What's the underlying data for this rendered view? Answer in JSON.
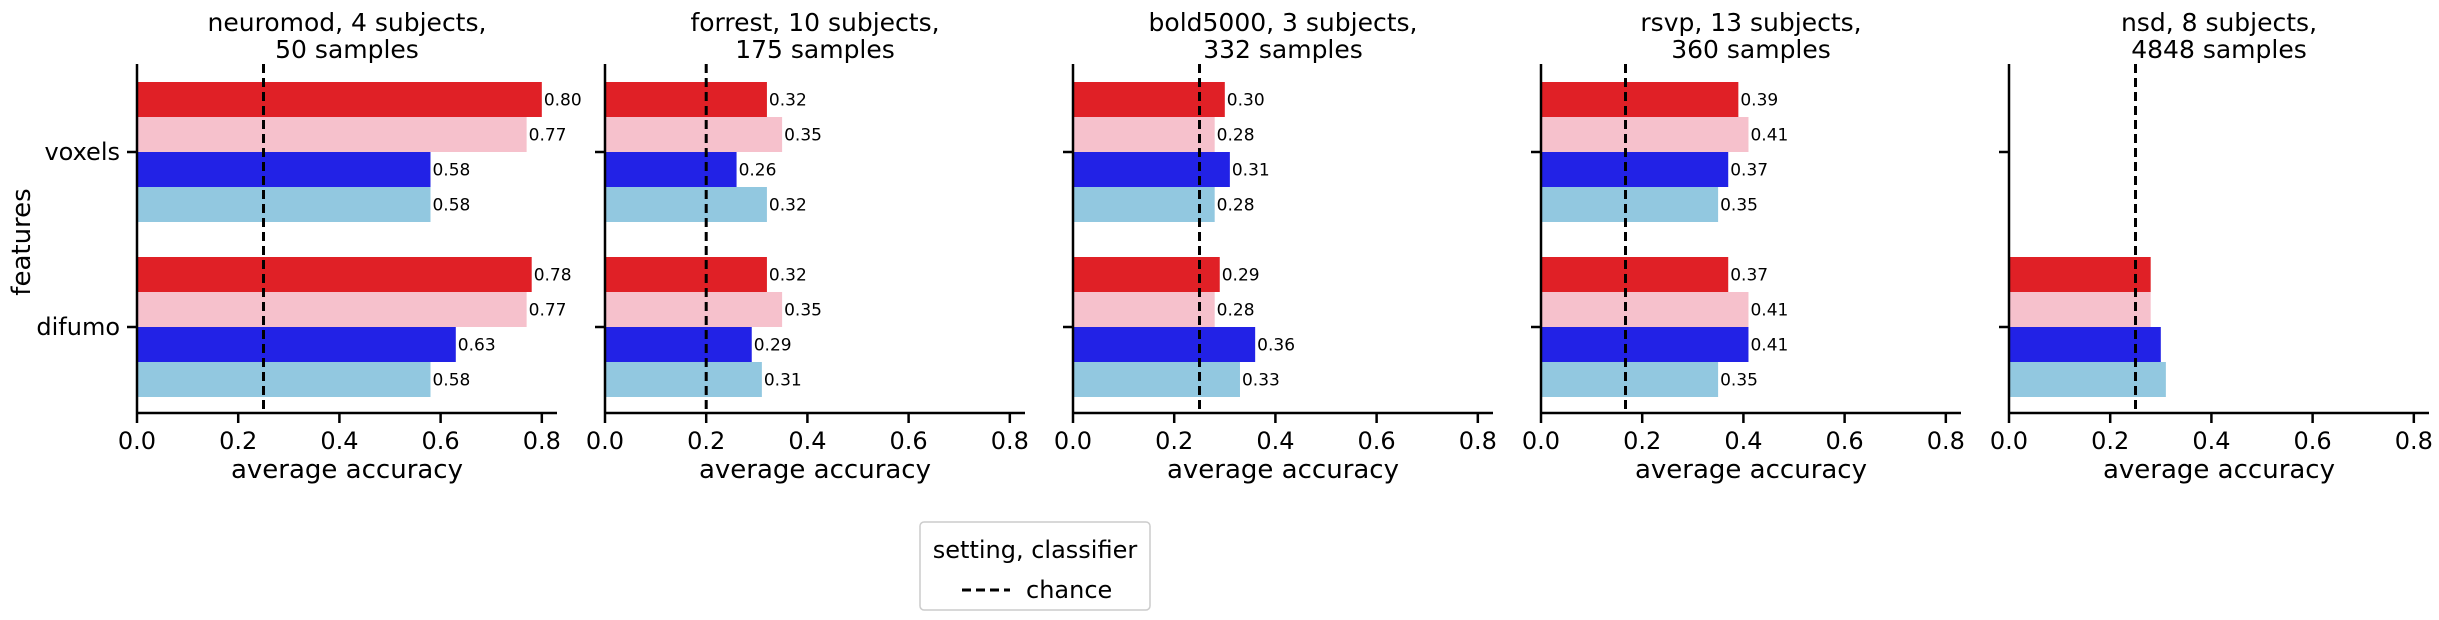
{
  "chart_data": {
    "type": "bar",
    "orientation": "horizontal",
    "ylabel": "features",
    "categories": [
      "voxels",
      "difumo"
    ],
    "series_colors": [
      "#e02026",
      "#f6c1cc",
      "#2222e6",
      "#92c8e0"
    ],
    "xlim": [
      0,
      0.83
    ],
    "xticks": [
      "0.0",
      "0.2",
      "0.4",
      "0.6",
      "0.8"
    ],
    "xlabel": "average accuracy",
    "grid": false,
    "panels": [
      {
        "title_line1": "neuromod, 4 subjects,",
        "title_line2": "50 samples",
        "chance": 0.25,
        "values": {
          "voxels": [
            0.8,
            0.77,
            0.58,
            0.58
          ],
          "difumo": [
            0.78,
            0.77,
            0.63,
            0.58
          ]
        },
        "value_labels": {
          "voxels": [
            "0.80",
            "0.77",
            "0.58",
            "0.58"
          ],
          "difumo": [
            "0.78",
            "0.77",
            "0.63",
            "0.58"
          ]
        }
      },
      {
        "title_line1": "forrest, 10 subjects,",
        "title_line2": "175 samples",
        "chance": 0.2,
        "values": {
          "voxels": [
            0.32,
            0.35,
            0.26,
            0.32
          ],
          "difumo": [
            0.32,
            0.35,
            0.29,
            0.31
          ]
        },
        "value_labels": {
          "voxels": [
            "0.32",
            "0.35",
            "0.26",
            "0.32"
          ],
          "difumo": [
            "0.32",
            "0.35",
            "0.29",
            "0.31"
          ]
        }
      },
      {
        "title_line1": "bold5000, 3 subjects,",
        "title_line2": "332 samples",
        "chance": 0.25,
        "values": {
          "voxels": [
            0.3,
            0.28,
            0.31,
            0.28
          ],
          "difumo": [
            0.29,
            0.28,
            0.36,
            0.33
          ]
        },
        "value_labels": {
          "voxels": [
            "0.30",
            "0.28",
            "0.31",
            "0.28"
          ],
          "difumo": [
            "0.29",
            "0.28",
            "0.36",
            "0.33"
          ]
        }
      },
      {
        "title_line1": "rsvp, 13 subjects,",
        "title_line2": "360 samples",
        "chance": 0.167,
        "values": {
          "voxels": [
            0.39,
            0.41,
            0.37,
            0.35
          ],
          "difumo": [
            0.37,
            0.41,
            0.41,
            0.35
          ]
        },
        "value_labels": {
          "voxels": [
            "0.39",
            "0.41",
            "0.37",
            "0.35"
          ],
          "difumo": [
            "0.37",
            "0.41",
            "0.41",
            "0.35"
          ]
        }
      },
      {
        "title_line1": "nsd, 8 subjects,",
        "title_line2": "4848 samples",
        "chance": 0.25,
        "values": {
          "voxels": [],
          "difumo": [
            0.28,
            0.28,
            0.3,
            0.31
          ]
        },
        "value_labels": {
          "voxels": [],
          "difumo": []
        }
      }
    ],
    "legend": {
      "title": "setting, classifier",
      "entries": [
        "chance"
      ],
      "placement": "bottom-center"
    }
  }
}
